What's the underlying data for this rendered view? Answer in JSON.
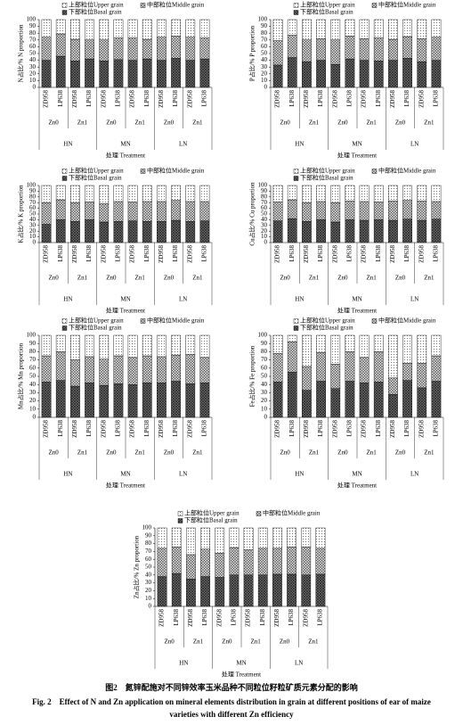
{
  "chart_data": [
    {
      "type": "stacked_bar",
      "y_label": "N占比/% N proportion",
      "x_label": "处理 Treatment",
      "categories": [
        "ZD958",
        "LP638",
        "ZD958",
        "LP638",
        "ZD958",
        "LP638",
        "ZD958",
        "LP638",
        "ZD958",
        "LP638",
        "ZD958",
        "LP638"
      ],
      "subgroups": [
        "Zn0",
        "Zn1",
        "Zn0",
        "Zn1",
        "Zn0",
        "Zn1"
      ],
      "groups": [
        "HN",
        "MN",
        "LN"
      ],
      "ylim": [
        0,
        100
      ],
      "yticks": [
        0,
        10,
        20,
        30,
        40,
        50,
        60,
        70,
        80,
        90,
        100
      ],
      "series": [
        {
          "name": "下部粒位Basal grain",
          "color": "#777777",
          "pattern": "dense-cross",
          "values": [
            40,
            46,
            39,
            42,
            39,
            41,
            40,
            42,
            40,
            43,
            40,
            42
          ]
        },
        {
          "name": "中部粒位Middle grain",
          "color": "#d0d0d0",
          "pattern": "cross",
          "values": [
            34,
            33,
            32,
            28,
            31,
            32,
            33,
            29,
            34,
            33,
            34,
            31
          ]
        },
        {
          "name": "上部粒位Upper grain",
          "color": "#ffffff",
          "pattern": "dots",
          "values": [
            26,
            21,
            29,
            30,
            30,
            27,
            27,
            29,
            26,
            24,
            26,
            27
          ]
        }
      ]
    },
    {
      "type": "stacked_bar",
      "y_label": "P占比/% P proportion",
      "x_label": "处理 Treatment",
      "categories": [
        "ZD958",
        "LP638",
        "ZD958",
        "LP638",
        "ZD958",
        "LP638",
        "ZD958",
        "LP638",
        "ZD958",
        "LP638",
        "ZD958",
        "LP638"
      ],
      "subgroups": [
        "Zn0",
        "Zn1",
        "Zn0",
        "Zn1",
        "Zn0",
        "Zn1"
      ],
      "groups": [
        "HN",
        "MN",
        "LN"
      ],
      "ylim": [
        0,
        100
      ],
      "yticks": [
        0,
        10,
        20,
        30,
        40,
        50,
        60,
        70,
        80,
        90,
        100
      ],
      "series": [
        {
          "name": "下部粒位Basal grain",
          "color": "#777777",
          "pattern": "dense-cross",
          "values": [
            33,
            44,
            38,
            40,
            34,
            42,
            40,
            39,
            40,
            43,
            38,
            40
          ]
        },
        {
          "name": "中部粒位Middle grain",
          "color": "#d0d0d0",
          "pattern": "cross",
          "values": [
            36,
            33,
            32,
            32,
            36,
            34,
            32,
            34,
            31,
            32,
            34,
            34
          ]
        },
        {
          "name": "上部粒位Upper grain",
          "color": "#ffffff",
          "pattern": "dots",
          "values": [
            31,
            23,
            30,
            28,
            30,
            24,
            28,
            27,
            29,
            25,
            28,
            26
          ]
        }
      ]
    },
    {
      "type": "stacked_bar",
      "y_label": "K占比/% K proportion",
      "x_label": "处理 Treatment",
      "categories": [
        "ZD958",
        "LP638",
        "ZD958",
        "LP638",
        "ZD958",
        "LP638",
        "ZD958",
        "LP638",
        "ZD958",
        "LP638",
        "ZD958",
        "LP638"
      ],
      "subgroups": [
        "Zn0",
        "Zn1",
        "Zn0",
        "Zn1",
        "Zn0",
        "Zn1"
      ],
      "groups": [
        "HN",
        "MN",
        "LN"
      ],
      "ylim": [
        0,
        100
      ],
      "yticks": [
        0,
        10,
        20,
        30,
        40,
        50,
        60,
        70,
        80,
        90,
        100
      ],
      "series": [
        {
          "name": "下部粒位Basal grain",
          "color": "#777777",
          "pattern": "dense-cross",
          "values": [
            32,
            40,
            37,
            40,
            36,
            37,
            38,
            37,
            37,
            39,
            37,
            38
          ]
        },
        {
          "name": "中部粒位Middle grain",
          "color": "#d0d0d0",
          "pattern": "cross",
          "values": [
            38,
            35,
            33,
            31,
            32,
            35,
            33,
            35,
            35,
            35,
            35,
            34
          ]
        },
        {
          "name": "上部粒位Upper grain",
          "color": "#ffffff",
          "pattern": "dots",
          "values": [
            30,
            25,
            30,
            29,
            32,
            28,
            29,
            28,
            28,
            26,
            28,
            28
          ]
        }
      ]
    },
    {
      "type": "stacked_bar",
      "y_label": "Cu占比/% Cu proportion",
      "x_label": "处理 Treatment",
      "categories": [
        "ZD958",
        "LP638",
        "ZD958",
        "LP638",
        "ZD958",
        "LP638",
        "ZD958",
        "LP638",
        "ZD958",
        "LP638",
        "ZD958",
        "LP638"
      ],
      "subgroups": [
        "Zn0",
        "Zn1",
        "Zn0",
        "Zn1",
        "Zn0",
        "Zn1"
      ],
      "groups": [
        "HN",
        "MN",
        "LN"
      ],
      "ylim": [
        0,
        100
      ],
      "yticks": [
        0,
        10,
        20,
        30,
        40,
        50,
        60,
        70,
        80,
        90,
        100
      ],
      "series": [
        {
          "name": "下部粒位Basal grain",
          "color": "#777777",
          "pattern": "dense-cross",
          "values": [
            38,
            42,
            37,
            40,
            36,
            40,
            39,
            40,
            39,
            41,
            39,
            41
          ]
        },
        {
          "name": "中部粒位Middle grain",
          "color": "#d0d0d0",
          "pattern": "cross",
          "values": [
            33,
            33,
            33,
            32,
            34,
            33,
            33,
            31,
            34,
            33,
            34,
            31
          ]
        },
        {
          "name": "上部粒位Upper grain",
          "color": "#ffffff",
          "pattern": "dots",
          "values": [
            29,
            25,
            30,
            28,
            30,
            27,
            28,
            29,
            27,
            26,
            27,
            28
          ]
        }
      ]
    },
    {
      "type": "stacked_bar",
      "y_label": "Mn占比/% Mn proportion",
      "x_label": "处理 Treatment",
      "categories": [
        "ZD958",
        "LP638",
        "ZD958",
        "LP638",
        "ZD958",
        "LP638",
        "ZD958",
        "LP638",
        "ZD958",
        "LP638",
        "ZD958",
        "LP638"
      ],
      "subgroups": [
        "Zn0",
        "Zn1",
        "Zn0",
        "Zn1",
        "Zn0",
        "Zn1"
      ],
      "groups": [
        "HN",
        "MN",
        "LN"
      ],
      "ylim": [
        0,
        100
      ],
      "yticks": [
        0,
        10,
        20,
        30,
        40,
        50,
        60,
        70,
        80,
        90,
        100
      ],
      "series": [
        {
          "name": "下部粒位Basal grain",
          "color": "#777777",
          "pattern": "dense-cross",
          "values": [
            43,
            45,
            38,
            42,
            39,
            41,
            40,
            42,
            42,
            44,
            41,
            42
          ]
        },
        {
          "name": "中部粒位Middle grain",
          "color": "#d0d0d0",
          "pattern": "cross",
          "values": [
            32,
            35,
            32,
            32,
            32,
            34,
            33,
            33,
            32,
            32,
            36,
            31
          ]
        },
        {
          "name": "上部粒位Upper grain",
          "color": "#ffffff",
          "pattern": "dots",
          "values": [
            25,
            20,
            30,
            26,
            29,
            25,
            27,
            25,
            26,
            24,
            23,
            27
          ]
        }
      ]
    },
    {
      "type": "stacked_bar",
      "y_label": "Fe占比/% Fe proportion",
      "x_label": "处理 Treatment",
      "categories": [
        "ZD958",
        "LP638",
        "ZD958",
        "LP638",
        "ZD958",
        "LP638",
        "ZD958",
        "LP638",
        "ZD958",
        "LP638",
        "ZD958",
        "LP638"
      ],
      "subgroups": [
        "Zn0",
        "Zn1",
        "Zn0",
        "Zn1",
        "Zn0",
        "Zn1"
      ],
      "groups": [
        "HN",
        "MN",
        "LN"
      ],
      "ylim": [
        0,
        100
      ],
      "yticks": [
        0,
        10,
        20,
        30,
        40,
        50,
        60,
        70,
        80,
        90,
        100
      ],
      "series": [
        {
          "name": "下部粒位Basal grain",
          "color": "#777777",
          "pattern": "dense-cross",
          "values": [
            43,
            55,
            33,
            44,
            35,
            44,
            42,
            43,
            28,
            45,
            36,
            44
          ]
        },
        {
          "name": "中部粒位Middle grain",
          "color": "#d0d0d0",
          "pattern": "cross",
          "values": [
            35,
            37,
            29,
            35,
            30,
            36,
            31,
            37,
            20,
            21,
            30,
            31
          ]
        },
        {
          "name": "上部粒位Upper grain",
          "color": "#ffffff",
          "pattern": "dots",
          "values": [
            22,
            8,
            38,
            21,
            35,
            20,
            27,
            20,
            52,
            34,
            34,
            25
          ]
        }
      ]
    },
    {
      "type": "stacked_bar",
      "y_label": "Zn占比/% Zn proportion",
      "x_label": "处理 Treatment",
      "categories": [
        "ZD958",
        "LP638",
        "ZD958",
        "LP638",
        "ZD958",
        "LP638",
        "ZD958",
        "LP638",
        "ZD958",
        "LP638",
        "ZD958",
        "LP638"
      ],
      "subgroups": [
        "Zn0",
        "Zn1",
        "Zn0",
        "Zn1",
        "Zn0",
        "Zn1"
      ],
      "groups": [
        "HN",
        "MN",
        "LN"
      ],
      "ylim": [
        0,
        100
      ],
      "yticks": [
        0,
        10,
        20,
        30,
        40,
        50,
        60,
        70,
        80,
        90,
        100
      ],
      "series": [
        {
          "name": "下部粒位Basal grain",
          "color": "#777777",
          "pattern": "dense-cross",
          "values": [
            38,
            42,
            35,
            38,
            37,
            40,
            40,
            40,
            41,
            41,
            40,
            41
          ]
        },
        {
          "name": "中部粒位Middle grain",
          "color": "#d0d0d0",
          "pattern": "cross",
          "values": [
            36,
            34,
            31,
            35,
            31,
            35,
            32,
            34,
            33,
            35,
            36,
            33
          ]
        },
        {
          "name": "上部粒位Upper grain",
          "color": "#ffffff",
          "pattern": "dots",
          "values": [
            26,
            24,
            34,
            27,
            32,
            25,
            28,
            26,
            26,
            24,
            24,
            26
          ]
        }
      ]
    }
  ],
  "caption": {
    "zh": "图2　氮锌配施对不同锌效率玉米品种不同粒位籽粒矿质元素分配的影响",
    "en": [
      "Fig. 2　Effect of N and Zn application on mineral elements distribution in grain at different positions of ear of maize",
      "varieties with different Zn efficiency"
    ]
  }
}
